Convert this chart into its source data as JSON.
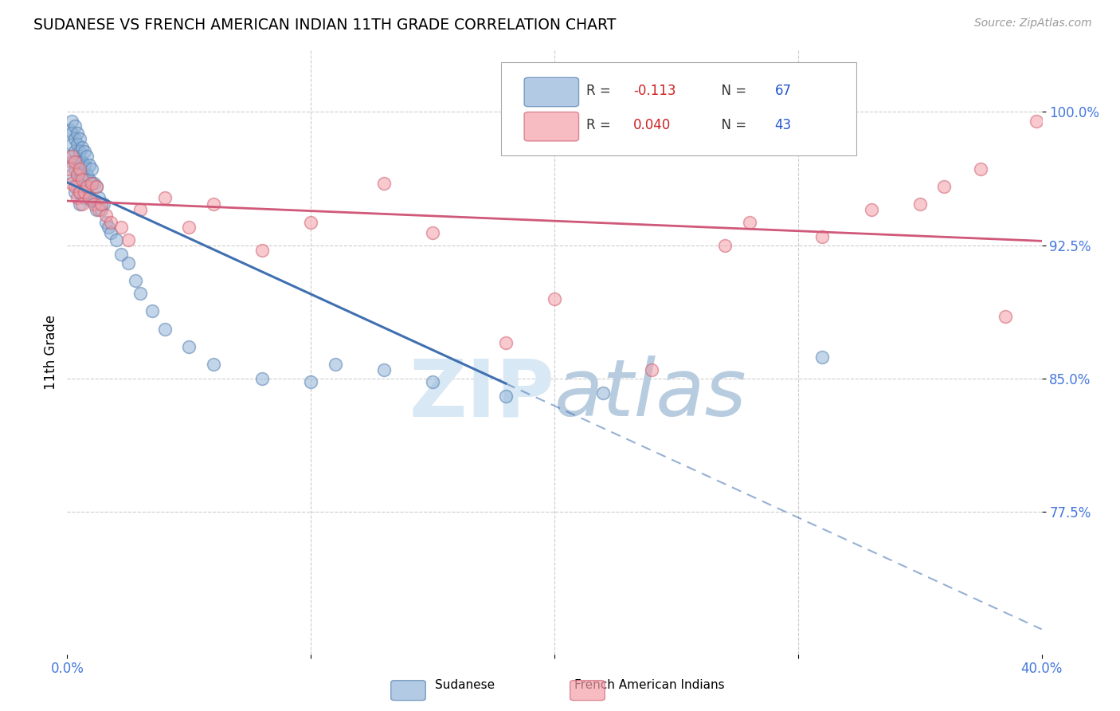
{
  "title": "SUDANESE VS FRENCH AMERICAN INDIAN 11TH GRADE CORRELATION CHART",
  "source": "Source: ZipAtlas.com",
  "ylabel": "11th Grade",
  "R_blue": -0.113,
  "N_blue": 67,
  "R_pink": 0.04,
  "N_pink": 43,
  "blue_color": "#92B4D8",
  "pink_color": "#F4A0A8",
  "blue_edge_color": "#5580B0",
  "pink_edge_color": "#D06070",
  "blue_line_color": "#4070B0",
  "pink_line_color": "#D05878",
  "xlim": [
    0.0,
    0.4
  ],
  "ylim": [
    0.695,
    1.035
  ],
  "ytick_values": [
    0.775,
    0.85,
    0.925,
    1.0
  ],
  "ytick_labels": [
    "77.5%",
    "85.0%",
    "92.5%",
    "100.0%"
  ],
  "legend_blue_label": "Sudanese",
  "legend_pink_label": "French American Indians",
  "blue_points_x": [
    0.001,
    0.001,
    0.002,
    0.002,
    0.002,
    0.002,
    0.002,
    0.003,
    0.003,
    0.003,
    0.003,
    0.003,
    0.004,
    0.004,
    0.004,
    0.004,
    0.004,
    0.005,
    0.005,
    0.005,
    0.005,
    0.005,
    0.005,
    0.006,
    0.006,
    0.006,
    0.006,
    0.007,
    0.007,
    0.007,
    0.007,
    0.008,
    0.008,
    0.008,
    0.009,
    0.009,
    0.009,
    0.01,
    0.01,
    0.01,
    0.011,
    0.011,
    0.012,
    0.012,
    0.013,
    0.014,
    0.015,
    0.016,
    0.017,
    0.018,
    0.02,
    0.022,
    0.025,
    0.028,
    0.03,
    0.035,
    0.04,
    0.05,
    0.06,
    0.08,
    0.1,
    0.11,
    0.13,
    0.15,
    0.18,
    0.22,
    0.31
  ],
  "blue_points_y": [
    0.99,
    0.975,
    0.995,
    0.988,
    0.982,
    0.972,
    0.965,
    0.992,
    0.985,
    0.978,
    0.968,
    0.955,
    0.988,
    0.982,
    0.972,
    0.965,
    0.958,
    0.985,
    0.978,
    0.972,
    0.962,
    0.955,
    0.948,
    0.98,
    0.972,
    0.965,
    0.955,
    0.978,
    0.97,
    0.962,
    0.952,
    0.975,
    0.965,
    0.958,
    0.97,
    0.962,
    0.952,
    0.968,
    0.96,
    0.95,
    0.96,
    0.95,
    0.958,
    0.945,
    0.952,
    0.945,
    0.948,
    0.938,
    0.935,
    0.932,
    0.928,
    0.92,
    0.915,
    0.905,
    0.898,
    0.888,
    0.878,
    0.868,
    0.858,
    0.85,
    0.848,
    0.858,
    0.855,
    0.848,
    0.84,
    0.842,
    0.862
  ],
  "pink_points_x": [
    0.001,
    0.002,
    0.002,
    0.003,
    0.003,
    0.004,
    0.004,
    0.005,
    0.005,
    0.006,
    0.006,
    0.007,
    0.008,
    0.009,
    0.01,
    0.011,
    0.012,
    0.013,
    0.014,
    0.016,
    0.018,
    0.022,
    0.025,
    0.03,
    0.04,
    0.05,
    0.06,
    0.08,
    0.1,
    0.13,
    0.15,
    0.18,
    0.2,
    0.24,
    0.27,
    0.28,
    0.31,
    0.33,
    0.35,
    0.36,
    0.375,
    0.385,
    0.398
  ],
  "pink_points_y": [
    0.968,
    0.975,
    0.96,
    0.972,
    0.958,
    0.965,
    0.952,
    0.968,
    0.955,
    0.962,
    0.948,
    0.955,
    0.958,
    0.952,
    0.96,
    0.948,
    0.958,
    0.945,
    0.948,
    0.942,
    0.938,
    0.935,
    0.928,
    0.945,
    0.952,
    0.935,
    0.948,
    0.922,
    0.938,
    0.96,
    0.932,
    0.87,
    0.895,
    0.855,
    0.925,
    0.938,
    0.93,
    0.945,
    0.948,
    0.958,
    0.968,
    0.885,
    0.995
  ]
}
